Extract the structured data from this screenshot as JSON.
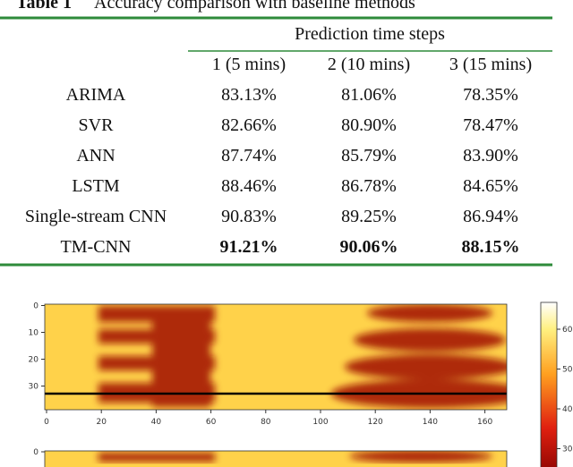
{
  "table": {
    "label": "Table 1",
    "title": "Accuracy comparison with baseline methods",
    "group_header": "Prediction time steps",
    "columns": [
      "1 (5 mins)",
      "2 (10 mins)",
      "3 (15 mins)"
    ],
    "rows": [
      [
        "ARIMA",
        "83.13%",
        "81.06%",
        "78.35%"
      ],
      [
        "SVR",
        "82.66%",
        "80.90%",
        "78.47%"
      ],
      [
        "ANN",
        "87.74%",
        "85.79%",
        "83.90%"
      ],
      [
        "LSTM",
        "88.46%",
        "86.78%",
        "84.65%"
      ],
      [
        "Single-stream CNN",
        "90.83%",
        "89.25%",
        "86.94%"
      ],
      [
        "TM-CNN",
        "91.21%",
        "90.06%",
        "88.15%"
      ]
    ]
  },
  "figure": {
    "top_heatmap": {
      "yticks": [
        0,
        10,
        20,
        30
      ],
      "xticks": [
        0,
        20,
        40,
        60,
        80,
        100,
        120,
        140,
        160
      ]
    },
    "bottom_heatmap": {
      "yticks": [
        0
      ]
    },
    "colorbar": {
      "ticks": [
        60,
        50,
        40,
        30
      ]
    }
  }
}
